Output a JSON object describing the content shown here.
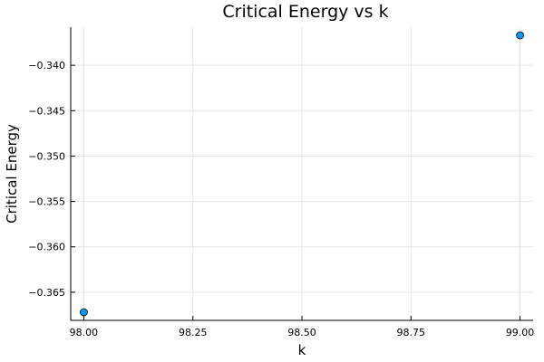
{
  "chart_data": {
    "type": "scatter",
    "title": "Critical Energy vs k",
    "xlabel": "k",
    "ylabel": "Critical Energy",
    "x": [
      98.0,
      99.0
    ],
    "y": [
      -0.3672,
      -0.3367
    ],
    "xticks": [
      98.0,
      98.25,
      98.5,
      98.75,
      99.0
    ],
    "xtick_labels": [
      "98.00",
      "98.25",
      "98.50",
      "98.75",
      "99.00"
    ],
    "yticks": [
      -0.365,
      -0.36,
      -0.355,
      -0.35,
      -0.345,
      -0.34
    ],
    "ytick_labels": [
      "−0.365",
      "−0.360",
      "−0.355",
      "−0.350",
      "−0.345",
      "−0.340"
    ],
    "xlim": [
      97.97,
      99.03
    ],
    "ylim": [
      -0.3681,
      -0.3358
    ],
    "grid": true,
    "legend": false,
    "marker_color": "#009af9"
  }
}
